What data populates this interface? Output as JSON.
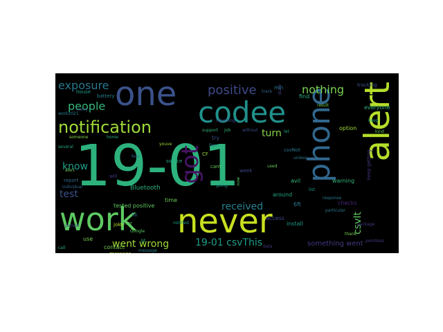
{
  "wordcloud": {
    "background": "#000000",
    "words": [
      {
        "text": "19-01",
        "color": "#2db27d"
      },
      {
        "text": "work",
        "color": "#5ec962"
      },
      {
        "text": "never",
        "color": "#c8e020"
      },
      {
        "text": "one",
        "color": "#3b528b"
      },
      {
        "text": "codee",
        "color": "#21918c"
      },
      {
        "text": "phone",
        "color": "#31688e"
      },
      {
        "text": "alert",
        "color": "#b5de2b"
      },
      {
        "text": "got",
        "color": "#471365"
      },
      {
        "text": "notification",
        "color": "#a0da39"
      },
      {
        "text": "positive",
        "color": "#3e4a89"
      },
      {
        "text": "nothing",
        "color": "#7ad151"
      },
      {
        "text": "exposure",
        "color": "#2a788e"
      },
      {
        "text": "people",
        "color": "#35b779"
      },
      {
        "text": "know",
        "color": "#1f9e89"
      },
      {
        "text": "test",
        "color": "#3b528b"
      },
      {
        "text": "received",
        "color": "#26828e"
      },
      {
        "text": "went wrong",
        "color": "#a0da39"
      },
      {
        "text": "19-01 csvThis",
        "color": "#1f9e89"
      },
      {
        "text": "csvIt",
        "color": "#5ec962"
      },
      {
        "text": "turn",
        "color": "#86d549"
      },
      {
        "text": "something went",
        "color": "#443983"
      },
      {
        "text": "Bluetooth",
        "color": "#2db27d"
      },
      {
        "text": "tested positive",
        "color": "#5ec962"
      },
      {
        "text": "contact",
        "color": "#7ad151"
      },
      {
        "text": "install",
        "color": "#1f9e89"
      },
      {
        "text": "access",
        "color": "#3e4a89"
      },
      {
        "text": "around",
        "color": "#22a884"
      },
      {
        "text": "checks",
        "color": "#482878"
      },
      {
        "text": "warning",
        "color": "#35b779"
      },
      {
        "text": "6ft",
        "color": "#2a788e"
      },
      {
        "text": "time",
        "color": "#6ccd5a"
      },
      {
        "text": "will",
        "color": "#443983"
      },
      {
        "text": "report",
        "color": "#31688e"
      },
      {
        "text": "battery",
        "color": "#26828e"
      },
      {
        "text": "everyone",
        "color": "#2db27d"
      },
      {
        "text": "message",
        "color": "#b5de2b"
      },
      {
        "text": "source",
        "color": "#22a884"
      },
      {
        "text": "try",
        "color": "#3b528b"
      },
      {
        "text": "use",
        "color": "#7ad151"
      },
      {
        "text": "error",
        "color": "#5ec962"
      },
      {
        "text": "house",
        "color": "#1f9e89"
      },
      {
        "text": "keep getting",
        "color": "#46337f"
      },
      {
        "text": "option",
        "color": "#a0da39"
      },
      {
        "text": "csvNot",
        "color": "#2a788e"
      },
      {
        "text": "week",
        "color": "#3e4a89"
      },
      {
        "text": "cant",
        "color": "#6ccd5a"
      },
      {
        "text": "avil",
        "color": "#35b779"
      },
      {
        "text": "find",
        "color": "#2db27d"
      },
      {
        "text": "min",
        "color": "#26828e"
      },
      {
        "text": "fix",
        "color": "#31688e"
      },
      {
        "text": "joke",
        "color": "#b5de2b"
      },
      {
        "text": "list",
        "color": "#1f9e89"
      },
      {
        "text": "tracking",
        "color": "#3b528b"
      },
      {
        "text": "response",
        "color": "#2a788e"
      },
      {
        "text": "Google",
        "color": "#5ec962"
      },
      {
        "text": "thank",
        "color": "#7ad151"
      },
      {
        "text": "several",
        "color": "#22a884"
      },
      {
        "text": "person",
        "color": "#3e4a89"
      },
      {
        "text": "someone",
        "color": "#86d549"
      },
      {
        "text": "call",
        "color": "#2db27d"
      },
      {
        "text": "pointless",
        "color": "#443983"
      },
      {
        "text": "fear",
        "color": "#31688e"
      },
      {
        "text": "Dev",
        "color": "#26828e"
      },
      {
        "text": "job",
        "color": "#35b779"
      },
      {
        "text": "CF",
        "color": "#a0da39"
      },
      {
        "text": "going",
        "color": "#1f9e89"
      },
      {
        "text": "without",
        "color": "#3b528b"
      },
      {
        "text": "unless",
        "color": "#2a788e"
      },
      {
        "text": "used",
        "color": "#6ccd5a"
      },
      {
        "text": "now",
        "color": "#5ec962"
      },
      {
        "text": "let",
        "color": "#22a884"
      },
      {
        "text": "state",
        "color": "#3e4a89"
      },
      {
        "text": "home",
        "color": "#2db27d"
      },
      {
        "text": "individual",
        "color": "#31688e"
      },
      {
        "text": "work2021",
        "color": "#26828e"
      },
      {
        "text": "notified",
        "color": "#1f9e89"
      },
      {
        "text": "package",
        "color": "#443983"
      },
      {
        "text": "result",
        "color": "#7ad151"
      },
      {
        "text": "support",
        "color": "#35b779"
      },
      {
        "text": "youve",
        "color": "#a0da39"
      },
      {
        "text": "particular",
        "color": "#2a788e"
      },
      {
        "text": "many",
        "color": "#3b528b"
      },
      {
        "text": "kind",
        "color": "#5ec962"
      },
      {
        "text": "keep",
        "color": "#22a884"
      },
      {
        "text": "reporting",
        "color": "#3e4a89"
      },
      {
        "text": "track",
        "color": "#31688e"
      },
      {
        "text": "message",
        "color": "#26828e"
      },
      {
        "text": "alert",
        "color": "#6ccd5a"
      },
      {
        "text": "data",
        "color": "#443983"
      },
      {
        "text": "bt",
        "color": "#2db27d"
      }
    ]
  }
}
